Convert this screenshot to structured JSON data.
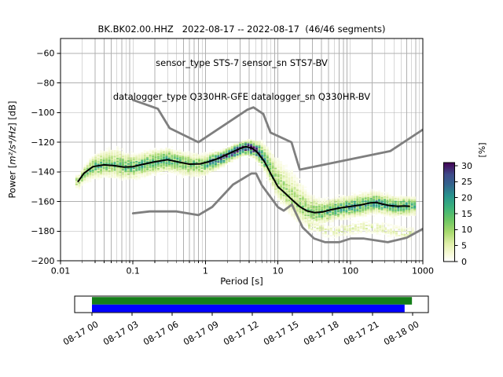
{
  "title": {
    "line1": "BK.BK02.00.HHZ   2022-08-17 -- 2022-08-17  (46/46 segments)",
    "line2": "sensor_type STS-7 sensor_sn STS7-BV",
    "line3": "datalogger_type Q330HR-GFE datalogger_sn Q330HR-BV"
  },
  "axes": {
    "xlabel": "Period [s]",
    "ylabel_prefix": "Power [",
    "ylabel_math": "m²/s⁴/Hz",
    "ylabel_suffix": "] [dB]",
    "xscale": "log",
    "xlim": [
      0.01,
      1000
    ],
    "x_tick_values": [
      0.01,
      0.1,
      1,
      10,
      100,
      1000
    ],
    "x_tick_labels": [
      "0.01",
      "0.1",
      "1",
      "10",
      "100",
      "1000"
    ],
    "ylim": [
      -200,
      -50
    ],
    "y_tick_values": [
      -60,
      -80,
      -100,
      -120,
      -140,
      -160,
      -180,
      -200
    ],
    "y_tick_labels": [
      "−60",
      "−80",
      "−100",
      "−120",
      "−140",
      "−160",
      "−180",
      "−200"
    ],
    "grid_on": true,
    "grid_color": "#b0b0b0"
  },
  "colorbar": {
    "label": "[%]",
    "tick_values": [
      0,
      5,
      10,
      15,
      20,
      25,
      30
    ],
    "tick_labels": [
      "0",
      "5",
      "10",
      "15",
      "20",
      "25",
      "30"
    ],
    "vmax": 31,
    "stops": [
      [
        0,
        "#ffffff"
      ],
      [
        0.08,
        "#f7fad8"
      ],
      [
        0.18,
        "#e0efa9"
      ],
      [
        0.3,
        "#a7d96d"
      ],
      [
        0.42,
        "#6cc663"
      ],
      [
        0.54,
        "#3db37a"
      ],
      [
        0.66,
        "#28948d"
      ],
      [
        0.78,
        "#33638d"
      ],
      [
        0.88,
        "#3e4a89"
      ],
      [
        1,
        "#440154"
      ]
    ]
  },
  "chart_data": {
    "type": "heatmap",
    "title": "BK.BK02.00.HHZ 2022-08-17 -- 2022-08-17 (46/46 segments)",
    "xlabel": "Period [s]",
    "ylabel": "Power [m²/s⁴/Hz] [dB]",
    "xscale": "log",
    "xlim": [
      0.01,
      1000
    ],
    "ylim": [
      -200,
      -50
    ],
    "colorbar_label": "[%]",
    "colorbar_range": [
      0,
      31
    ],
    "legend_position": "none",
    "series": [
      {
        "name": "noise_model_high",
        "color": "#7f7f7f",
        "width": 2.8,
        "periods": [
          0.1,
          0.22,
          0.32,
          0.8,
          3.8,
          4.6,
          6.3,
          7.9,
          15.4,
          20,
          354.8,
          1000
        ],
        "powers": [
          -91.5,
          -97.4,
          -110.5,
          -120,
          -98,
          -96.5,
          -101,
          -113.5,
          -120,
          -138.5,
          -126,
          -111.5
        ]
      },
      {
        "name": "noise_model_low",
        "color": "#7f7f7f",
        "width": 2.8,
        "periods": [
          0.1,
          0.17,
          0.4,
          0.8,
          1.24,
          2.4,
          4.3,
          5,
          6,
          10,
          12,
          15.6,
          21.9,
          31.6,
          45,
          70,
          101,
          154,
          328,
          600,
          1000
        ],
        "powers": [
          -168,
          -166.7,
          -166.7,
          -169.2,
          -163.7,
          -148.6,
          -141.1,
          -141.1,
          -149,
          -163.8,
          -166.2,
          -162.1,
          -177.5,
          -185,
          -187.5,
          -187.5,
          -185,
          -185,
          -187.5,
          -184.4,
          -178.5
        ]
      },
      {
        "name": "mode",
        "color": "#000000",
        "width": 2,
        "periods": [
          0.0175,
          0.021,
          0.028,
          0.04,
          0.055,
          0.075,
          0.1,
          0.14,
          0.2,
          0.3,
          0.42,
          0.6,
          0.85,
          1.1,
          1.5,
          2.2,
          3,
          3.6,
          4.4,
          5.2,
          6.5,
          8,
          10,
          12,
          15.4,
          20,
          25,
          32,
          42,
          55,
          75,
          100,
          140,
          190,
          230,
          280,
          350,
          450,
          560,
          650
        ],
        "powers": [
          -146.5,
          -141,
          -136.5,
          -135.3,
          -135.8,
          -136.8,
          -136.5,
          -134.8,
          -133.2,
          -131.8,
          -133.3,
          -134.8,
          -134.6,
          -133.2,
          -131,
          -127.2,
          -124.3,
          -123,
          -124,
          -126.8,
          -133,
          -141.5,
          -150,
          -153.5,
          -158.5,
          -163.5,
          -166.3,
          -167.5,
          -167,
          -165.5,
          -164.2,
          -163.4,
          -162.3,
          -160.9,
          -160.7,
          -161.8,
          -162.8,
          -163.2,
          -163,
          -163.2
        ]
      }
    ],
    "density": {
      "period_range": [
        0.016,
        760
      ],
      "bins_per_octave": 8,
      "db_bin_width": 1,
      "profile": [
        [
          0.016,
          2.2,
          2.2,
          9
        ],
        [
          0.03,
          4,
          4,
          14
        ],
        [
          0.06,
          5.5,
          4,
          12
        ],
        [
          0.1,
          4,
          4,
          14
        ],
        [
          0.25,
          3.8,
          3.8,
          17
        ],
        [
          0.5,
          3.6,
          4.2,
          12
        ],
        [
          0.8,
          3.2,
          4.2,
          13
        ],
        [
          1.5,
          2.6,
          3.2,
          22
        ],
        [
          2.5,
          2.2,
          2.6,
          28
        ],
        [
          3.6,
          2.2,
          2.8,
          30
        ],
        [
          5,
          3.2,
          3.2,
          24
        ],
        [
          7,
          6,
          4,
          13
        ],
        [
          10,
          8,
          5,
          10
        ],
        [
          16,
          9,
          6,
          9
        ],
        [
          25,
          6,
          5,
          11
        ],
        [
          35,
          4,
          4,
          14
        ],
        [
          60,
          3.6,
          3.6,
          16
        ],
        [
          120,
          3.6,
          3.6,
          18
        ],
        [
          200,
          3.6,
          3.6,
          17
        ],
        [
          350,
          3.2,
          3.4,
          17
        ],
        [
          550,
          3,
          3.2,
          18
        ],
        [
          760,
          3,
          3,
          13
        ]
      ],
      "secondary_band": {
        "periods": [
          26,
          40,
          60,
          90,
          140,
          200,
          300,
          450,
          600,
          760
        ],
        "powers": [
          -176,
          -179.5,
          -180.5,
          -178.5,
          -177,
          -177.5,
          -179,
          -181,
          -181.5,
          -182
        ],
        "sigma": 2.2,
        "max_pct": 5
      }
    }
  },
  "timeline": {
    "tick_labels": [
      "08-17 00",
      "08-17 03",
      "08-17 06",
      "08-17 09",
      "08-17 12",
      "08-17 15",
      "08-17 18",
      "08-17 21",
      "08-18 00"
    ],
    "tick_hours": [
      0,
      3,
      6,
      9,
      12,
      15,
      18,
      21,
      24
    ],
    "hours_range": [
      0,
      24
    ],
    "coverage_bar": {
      "color": "#147e19",
      "start_hour": 0,
      "end_hour": 23.95
    },
    "processed_bar": {
      "color": "#0000ff",
      "start_hour": 0,
      "end_hour": 23.4
    }
  }
}
